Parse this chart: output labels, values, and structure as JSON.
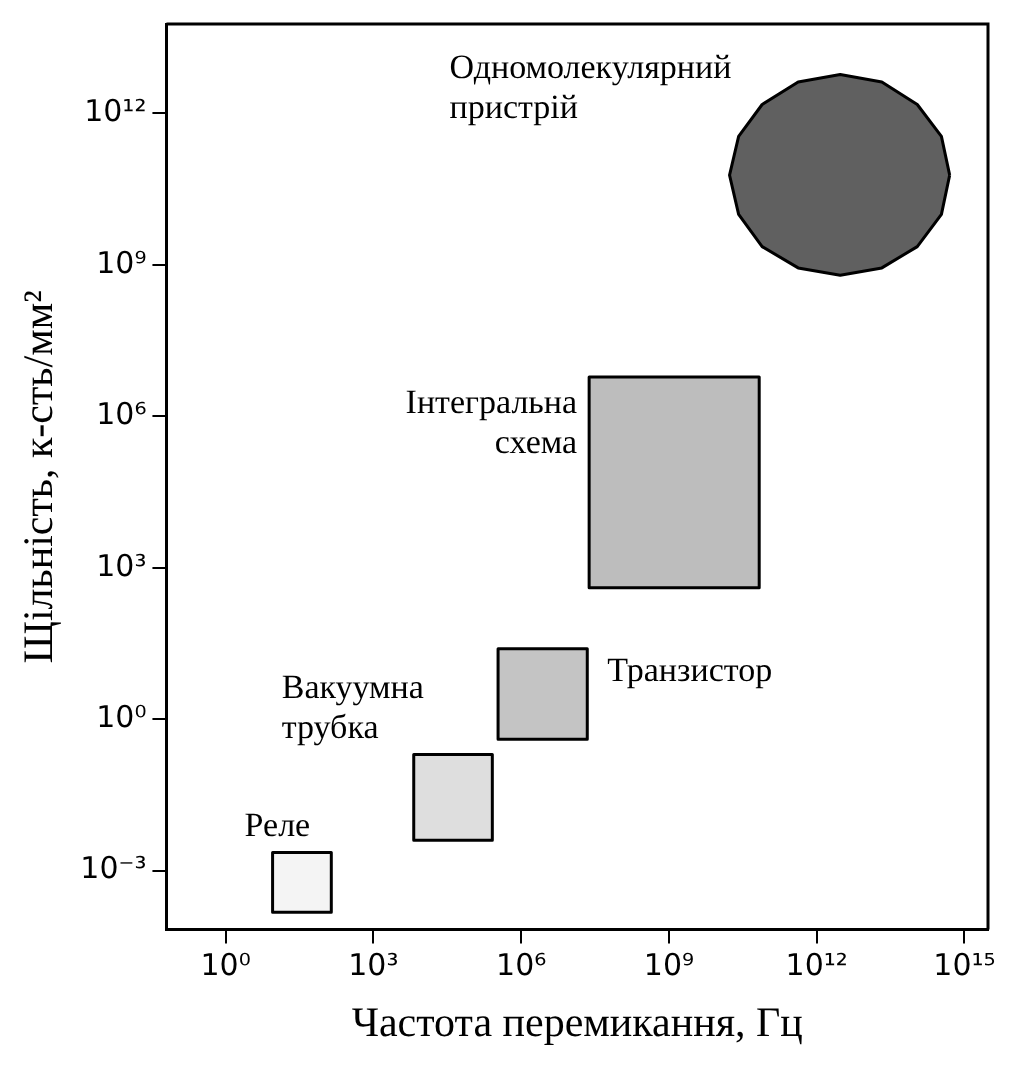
{
  "chart_data": {
    "type": "area",
    "xlabel": "Частота перемикання, Гц",
    "ylabel": "Щільність, к-сть/мм²",
    "log": "xy",
    "grid": false,
    "legend": false,
    "marker": "none",
    "xlim": [
      0.063,
      3000000000000000.0
    ],
    "ylim": [
      6.8e-05,
      59000000000000.0
    ],
    "xticks": [
      {
        "value": 1,
        "label": "10⁰"
      },
      {
        "value": 1000,
        "label": "10³"
      },
      {
        "value": 1000000,
        "label": "10⁶"
      },
      {
        "value": 1000000000,
        "label": "10⁹"
      },
      {
        "value": 1000000000000,
        "label": "10¹²"
      },
      {
        "value": 1000000000000000,
        "label": "10¹⁵"
      }
    ],
    "yticks": [
      {
        "value": 0.001,
        "label": "10⁻³"
      },
      {
        "value": 1,
        "label": "10⁰"
      },
      {
        "value": 1000,
        "label": "10³"
      },
      {
        "value": 1000000,
        "label": "10⁶"
      },
      {
        "value": 1000000000,
        "label": "10⁹"
      },
      {
        "value": 1000000000000,
        "label": "10¹²"
      }
    ],
    "series": [
      {
        "name": "Реле",
        "color": "#f4f4f4",
        "x": [
          9,
          140,
          140,
          9,
          9
        ],
        "values": [
          0.00015,
          0.00015,
          0.0023,
          0.0023,
          0.00015
        ]
      },
      {
        "name": "Вакуумна трубка",
        "color": "#dedede",
        "x": [
          6600,
          260000,
          260000,
          6600,
          6600
        ],
        "values": [
          0.004,
          0.004,
          0.2,
          0.2,
          0.004
        ]
      },
      {
        "name": "Транзистор",
        "color": "#c4c4c4",
        "x": [
          340000,
          22000000,
          22000000,
          340000,
          340000
        ],
        "values": [
          0.4,
          0.4,
          25,
          25,
          0.4
        ]
      },
      {
        "name": "Інтегральна схема",
        "color": "#bdbdbd",
        "x": [
          24000000,
          68000000000,
          68000000000,
          24000000,
          24000000
        ],
        "values": [
          400,
          400,
          6000000,
          6000000,
          400
        ]
      },
      {
        "name": "Одномолекулярний пристрій",
        "color": "#606060",
        "x": [
          500000000000000.0,
          340000000000000.0,
          110000000000000.0,
          21000000000000.0,
          3000000000000.0,
          420000000000.0,
          78000000000.0,
          26000000000.0,
          17000000000.0,
          26000000000.0,
          78000000000.0,
          420000000000.0,
          3000000000000.0,
          21000000000000.0,
          110000000000000.0,
          340000000000000.0,
          500000000000000.0
        ],
        "values": [
          60000000000.0,
          350000000000.0,
          1500000000000.0,
          4200000000000.0,
          5900000000000.0,
          4200000000000.0,
          1500000000000.0,
          350000000000.0,
          60000000000.0,
          10000000000.0,
          2300000000.0,
          870000000.0,
          620000000.0,
          870000000.0,
          2300000000.0,
          10000000000.0,
          60000000000.0
        ]
      }
    ]
  }
}
